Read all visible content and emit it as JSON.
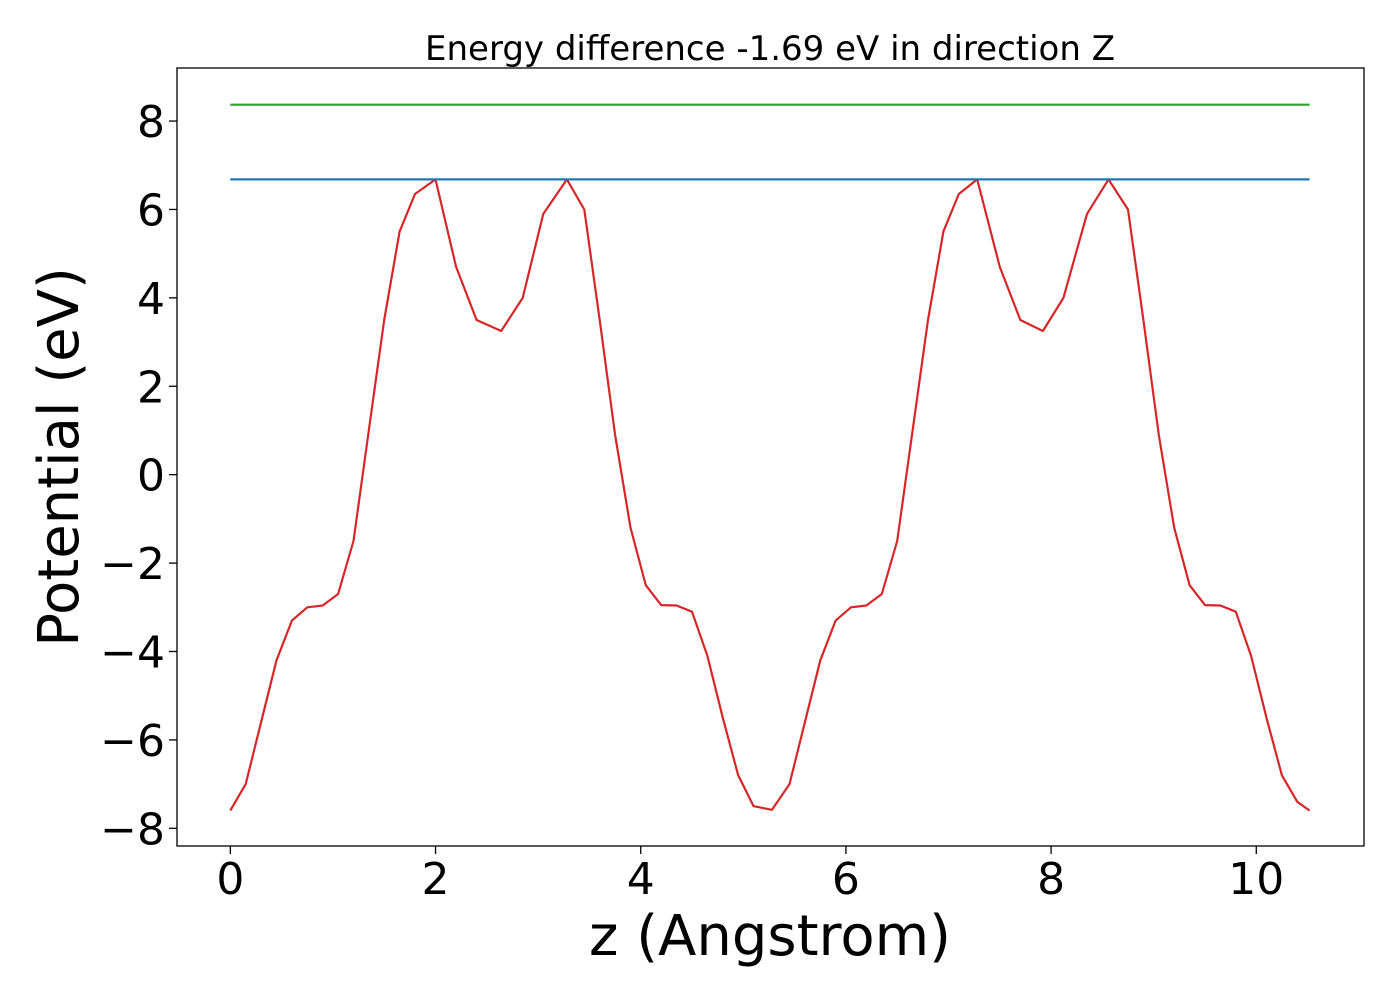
{
  "chart_data": {
    "type": "line",
    "title": "Energy difference -1.69 eV in direction Z",
    "xlabel": "z (Angstrom)",
    "ylabel": "Potential (eV)",
    "xlim": [
      -0.52,
      11.05
    ],
    "ylim": [
      -8.4,
      9.2
    ],
    "xticks": [
      0,
      2,
      4,
      6,
      8,
      10
    ],
    "xtick_labels": [
      "0",
      "2",
      "4",
      "6",
      "8",
      "10"
    ],
    "yticks": [
      -8,
      -6,
      -4,
      -2,
      0,
      2,
      4,
      6,
      8
    ],
    "ytick_labels": [
      "−8",
      "−6",
      "−4",
      "−2",
      "0",
      "2",
      "4",
      "6",
      "8"
    ],
    "grid": false,
    "series": [
      {
        "color": "#d62728",
        "x": [
          0.0,
          0.15,
          0.3,
          0.45,
          0.6,
          0.75,
          0.9,
          1.05,
          1.2,
          1.35,
          1.5,
          1.65,
          1.8,
          2.0,
          2.2,
          2.4,
          2.64,
          2.85,
          3.05,
          3.28,
          3.45,
          3.6,
          3.75,
          3.9,
          4.05,
          4.2,
          4.35,
          4.5,
          4.65,
          4.8,
          4.95,
          5.1,
          5.28,
          5.45,
          5.6,
          5.75,
          5.9,
          6.05,
          6.2,
          6.35,
          6.5,
          6.65,
          6.8,
          6.95,
          7.1,
          7.28,
          7.5,
          7.7,
          7.92,
          8.12,
          8.35,
          8.56,
          8.75,
          8.9,
          9.05,
          9.2,
          9.35,
          9.5,
          9.65,
          9.8,
          9.95,
          10.1,
          10.25,
          10.4,
          10.52
        ],
        "y": [
          -7.6,
          -7.0,
          -5.6,
          -4.2,
          -3.3,
          -3.0,
          -2.96,
          -2.7,
          -1.5,
          1.0,
          3.5,
          5.5,
          6.35,
          6.68,
          4.7,
          3.5,
          3.25,
          4.0,
          5.9,
          6.68,
          6.0,
          3.5,
          0.9,
          -1.2,
          -2.5,
          -2.95,
          -2.96,
          -3.1,
          -4.1,
          -5.5,
          -6.8,
          -7.5,
          -7.58,
          -7.0,
          -5.6,
          -4.2,
          -3.3,
          -3.0,
          -2.96,
          -2.7,
          -1.5,
          1.0,
          3.5,
          5.5,
          6.35,
          6.68,
          4.7,
          3.5,
          3.25,
          4.0,
          5.9,
          6.68,
          6.0,
          3.5,
          0.9,
          -1.2,
          -2.5,
          -2.95,
          -2.96,
          -3.1,
          -4.1,
          -5.5,
          -6.8,
          -7.4,
          -7.6
        ]
      },
      {
        "color": "#1f77b4",
        "x": [
          0,
          10.52
        ],
        "y": [
          6.68,
          6.68
        ]
      },
      {
        "color": "#2ca02c",
        "x": [
          0,
          10.52
        ],
        "y": [
          8.37,
          8.37
        ]
      }
    ]
  }
}
